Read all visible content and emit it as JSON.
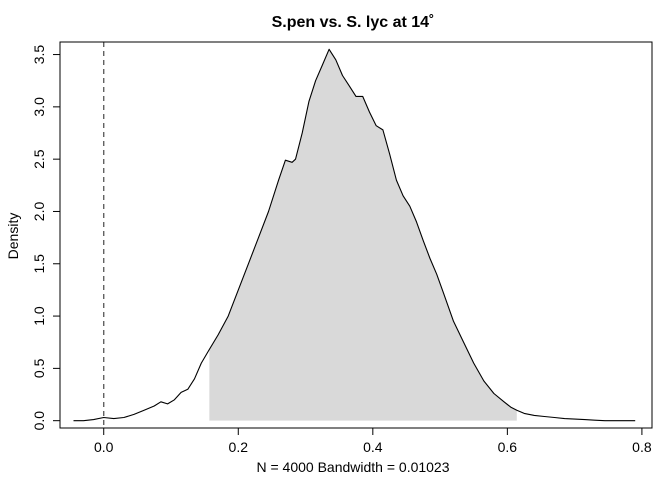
{
  "chart_data": {
    "type": "area",
    "title": "S.pen vs. S. lyc at 14˚",
    "xlabel": "N = 4000   Bandwidth = 0.01023",
    "ylabel": "Density",
    "xlim": [
      -0.065,
      0.815
    ],
    "ylim": [
      -0.07,
      3.62
    ],
    "x_ticks": [
      0.0,
      0.2,
      0.4,
      0.6,
      0.8
    ],
    "x_tick_labels": [
      "0.0",
      "0.2",
      "0.4",
      "0.6",
      "0.8"
    ],
    "y_ticks": [
      0.0,
      0.5,
      1.0,
      1.5,
      2.0,
      2.5,
      3.0,
      3.5
    ],
    "y_tick_labels": [
      "0.0",
      "0.5",
      "1.0",
      "1.5",
      "2.0",
      "2.5",
      "3.0",
      "3.5"
    ],
    "grid": false,
    "reference_line": {
      "x": 0.0,
      "style": "dashed"
    },
    "shaded_interval": [
      0.157,
      0.614
    ],
    "shade_color": "#d9d9d9",
    "line_color": "#000000",
    "density": {
      "x": [
        -0.045,
        -0.03,
        -0.015,
        0.0,
        0.015,
        0.03,
        0.045,
        0.06,
        0.075,
        0.085,
        0.095,
        0.105,
        0.115,
        0.125,
        0.135,
        0.145,
        0.157,
        0.17,
        0.185,
        0.2,
        0.215,
        0.23,
        0.245,
        0.26,
        0.27,
        0.28,
        0.285,
        0.295,
        0.305,
        0.315,
        0.325,
        0.335,
        0.345,
        0.355,
        0.365,
        0.375,
        0.385,
        0.395,
        0.405,
        0.415,
        0.425,
        0.435,
        0.445,
        0.455,
        0.465,
        0.475,
        0.485,
        0.495,
        0.505,
        0.52,
        0.535,
        0.55,
        0.565,
        0.58,
        0.595,
        0.605,
        0.614,
        0.625,
        0.64,
        0.655,
        0.67,
        0.685,
        0.7,
        0.715,
        0.73,
        0.745,
        0.76,
        0.775,
        0.79
      ],
      "y": [
        0.0,
        0.0,
        0.01,
        0.03,
        0.02,
        0.03,
        0.06,
        0.1,
        0.14,
        0.18,
        0.16,
        0.2,
        0.27,
        0.3,
        0.4,
        0.55,
        0.68,
        0.82,
        1.0,
        1.25,
        1.5,
        1.75,
        2.0,
        2.3,
        2.49,
        2.47,
        2.5,
        2.75,
        3.05,
        3.25,
        3.4,
        3.55,
        3.45,
        3.3,
        3.2,
        3.1,
        3.1,
        2.95,
        2.82,
        2.78,
        2.55,
        2.3,
        2.15,
        2.05,
        1.9,
        1.72,
        1.55,
        1.4,
        1.22,
        0.95,
        0.75,
        0.55,
        0.38,
        0.26,
        0.18,
        0.13,
        0.1,
        0.07,
        0.05,
        0.04,
        0.03,
        0.02,
        0.015,
        0.01,
        0.005,
        0.0,
        0.0,
        0.0,
        0.0
      ]
    }
  }
}
